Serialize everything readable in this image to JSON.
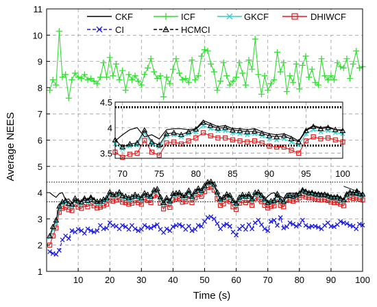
{
  "chart_data": {
    "type": "line",
    "title": "",
    "xlabel": "Time (s)",
    "ylabel": "Average NEES",
    "xlim": [
      0,
      100
    ],
    "ylim": [
      1,
      11
    ],
    "xticks": [
      10,
      20,
      30,
      40,
      50,
      60,
      70,
      80,
      90,
      100
    ],
    "yticks": [
      1,
      2,
      3,
      4,
      5,
      6,
      7,
      8,
      9,
      10,
      11
    ],
    "grid": true,
    "legend_position": "top",
    "confidence_bounds": [
      3.65,
      4.4
    ],
    "colors": {
      "CKF": "#000000",
      "ICF": "#33dd33",
      "GKCF": "#33cccc",
      "DHIWCF": "#e21a1a",
      "CI": "#1a1ae6",
      "HCMCI": "#000000"
    },
    "series": [
      {
        "name": "CKF",
        "marker": "none",
        "x": [
          1,
          2,
          3,
          4,
          5,
          6,
          7,
          8,
          9,
          10,
          11,
          12,
          13,
          14,
          15,
          16,
          17,
          18,
          19,
          20,
          21,
          22,
          23,
          24,
          25,
          26,
          27,
          28,
          29,
          30,
          31,
          32,
          33,
          34,
          35,
          36,
          37,
          38,
          39,
          40,
          41,
          42,
          43,
          44,
          45,
          46,
          47,
          48,
          49,
          50,
          51,
          52,
          53,
          54,
          55,
          56,
          57,
          58,
          59,
          60,
          61,
          62,
          63,
          64,
          65,
          66,
          67,
          68,
          69,
          70,
          71,
          72,
          73,
          74,
          75,
          76,
          77,
          78,
          79,
          80,
          81,
          82,
          83,
          84,
          85,
          86,
          87,
          88,
          89,
          90,
          91,
          92,
          93,
          94,
          95,
          96,
          97,
          98,
          99,
          100
        ],
        "values": [
          4.0,
          3.9,
          3.82,
          3.96,
          4.0,
          3.72,
          3.76,
          3.6,
          3.68,
          3.7,
          3.66,
          3.8,
          3.74,
          3.86,
          3.76,
          3.64,
          3.68,
          3.72,
          3.78,
          4.0,
          3.9,
          3.94,
          4.02,
          3.88,
          3.86,
          3.8,
          3.84,
          3.92,
          3.86,
          3.8,
          3.96,
          3.92,
          3.86,
          4.1,
          4.14,
          3.82,
          3.6,
          3.78,
          3.66,
          3.94,
          3.96,
          3.98,
          3.86,
          3.88,
          4.06,
          3.84,
          4.02,
          4.14,
          4.06,
          4.24,
          4.38,
          4.4,
          4.3,
          4.0,
          3.74,
          3.8,
          3.92,
          3.88,
          3.68,
          3.58,
          3.8,
          3.9,
          3.84,
          3.92,
          3.74,
          3.98,
          4.0,
          3.88,
          3.74,
          3.86,
          3.96,
          4.0,
          3.82,
          3.86,
          3.78,
          3.96,
          3.98,
          3.98,
          3.96,
          3.98,
          4.14,
          4.08,
          4.02,
          4.04,
          3.98,
          3.98,
          3.96,
          3.98,
          3.92,
          3.88,
          3.86,
          3.88,
          3.82,
          3.74,
          3.96,
          4.04,
          4.0,
          4.02,
          3.96,
          3.96
        ]
      },
      {
        "name": "ICF",
        "marker": "plus",
        "x": [
          1,
          2,
          3,
          4,
          5,
          6,
          7,
          8,
          9,
          10,
          11,
          12,
          13,
          14,
          15,
          16,
          17,
          18,
          19,
          20,
          21,
          22,
          23,
          24,
          25,
          26,
          27,
          28,
          29,
          30,
          31,
          32,
          33,
          34,
          35,
          36,
          37,
          38,
          39,
          40,
          41,
          42,
          43,
          44,
          45,
          46,
          47,
          48,
          49,
          50,
          51,
          52,
          53,
          54,
          55,
          56,
          57,
          58,
          59,
          60,
          61,
          62,
          63,
          64,
          65,
          66,
          67,
          68,
          69,
          70,
          71,
          72,
          73,
          74,
          75,
          76,
          77,
          78,
          79,
          80,
          81,
          82,
          83,
          84,
          85,
          86,
          87,
          88,
          89,
          90,
          91,
          92,
          93,
          94,
          95,
          96,
          97,
          98,
          99,
          100
        ],
        "values": [
          7.9,
          8.3,
          8.1,
          10.15,
          8.4,
          8.5,
          7.6,
          8.3,
          8.55,
          8.4,
          8.35,
          8.5,
          8.3,
          8.35,
          8.25,
          8.15,
          8.4,
          8.95,
          8.4,
          9.15,
          8.45,
          8.9,
          8.3,
          8.65,
          7.9,
          8.5,
          8.3,
          8.45,
          8.25,
          8.1,
          8.5,
          8.75,
          9.1,
          8.6,
          8.35,
          8.45,
          7.65,
          8.4,
          8.15,
          8.7,
          9.1,
          8.55,
          8.3,
          8.35,
          8.2,
          9.05,
          8.3,
          8.45,
          9.2,
          9.45,
          9.4,
          8.9,
          8.6,
          7.9,
          8.25,
          8.95,
          8.45,
          8.1,
          8.25,
          8.4,
          8.95,
          8.55,
          8.1,
          9.05,
          8.7,
          9.85,
          8.5,
          7.75,
          8.45,
          7.9,
          8.15,
          8.3,
          9.35,
          8.6,
          8.95,
          7.85,
          8.45,
          8.2,
          8.9,
          7.95,
          8.85,
          9.2,
          8.4,
          8.7,
          8.2,
          8.1,
          9.1,
          8.45,
          8.3,
          8.45,
          8.3,
          8.95,
          8.8,
          8.75,
          9.1,
          8.35,
          8.9,
          9.4,
          8.75,
          8.8
        ]
      },
      {
        "name": "GKCF",
        "marker": "x",
        "x": [
          1,
          2,
          3,
          4,
          5,
          6,
          7,
          8,
          9,
          10,
          11,
          12,
          13,
          14,
          15,
          16,
          17,
          18,
          19,
          20,
          21,
          22,
          23,
          24,
          25,
          26,
          27,
          28,
          29,
          30,
          31,
          32,
          33,
          34,
          35,
          36,
          37,
          38,
          39,
          40,
          41,
          42,
          43,
          44,
          45,
          46,
          47,
          48,
          49,
          50,
          51,
          52,
          53,
          54,
          55,
          56,
          57,
          58,
          59,
          60,
          61,
          62,
          63,
          64,
          65,
          66,
          67,
          68,
          69,
          70,
          71,
          72,
          73,
          74,
          75,
          76,
          77,
          78,
          79,
          80,
          81,
          82,
          83,
          84,
          85,
          86,
          87,
          88,
          89,
          90,
          91,
          92,
          93,
          94,
          95,
          96,
          97,
          98,
          99,
          100
        ],
        "values": [
          2.3,
          2.6,
          2.85,
          3.4,
          3.58,
          3.62,
          3.5,
          3.48,
          3.7,
          3.6,
          3.56,
          3.7,
          3.62,
          3.74,
          3.64,
          3.58,
          3.6,
          3.66,
          3.72,
          3.95,
          3.84,
          3.86,
          3.94,
          3.8,
          3.78,
          3.72,
          3.76,
          3.84,
          3.78,
          3.72,
          3.9,
          3.84,
          3.78,
          4.02,
          4.06,
          3.76,
          3.55,
          3.72,
          3.6,
          3.88,
          3.9,
          3.92,
          3.8,
          3.82,
          4.0,
          3.78,
          3.96,
          4.08,
          4.0,
          4.18,
          4.32,
          4.34,
          4.24,
          3.94,
          3.68,
          3.74,
          3.86,
          3.82,
          3.62,
          3.52,
          3.74,
          3.84,
          3.78,
          3.86,
          3.68,
          3.92,
          3.94,
          3.82,
          3.68,
          3.58,
          3.64,
          3.66,
          3.9,
          3.68,
          3.62,
          3.84,
          3.86,
          3.82,
          3.88,
          3.92,
          4.04,
          3.98,
          3.94,
          3.94,
          3.9,
          3.88,
          3.86,
          3.88,
          3.84,
          3.78,
          3.76,
          3.78,
          3.72,
          3.66,
          3.88,
          3.96,
          3.92,
          3.94,
          3.9,
          3.88
        ]
      },
      {
        "name": "DHIWCF",
        "marker": "square",
        "x": [
          1,
          2,
          3,
          4,
          5,
          6,
          7,
          8,
          9,
          10,
          11,
          12,
          13,
          14,
          15,
          16,
          17,
          18,
          19,
          20,
          21,
          22,
          23,
          24,
          25,
          26,
          27,
          28,
          29,
          30,
          31,
          32,
          33,
          34,
          35,
          36,
          37,
          38,
          39,
          40,
          41,
          42,
          43,
          44,
          45,
          46,
          47,
          48,
          49,
          50,
          51,
          52,
          53,
          54,
          55,
          56,
          57,
          58,
          59,
          60,
          61,
          62,
          63,
          64,
          65,
          66,
          67,
          68,
          69,
          70,
          71,
          72,
          73,
          74,
          75,
          76,
          77,
          78,
          79,
          80,
          81,
          82,
          83,
          84,
          85,
          86,
          87,
          88,
          89,
          90,
          91,
          92,
          93,
          94,
          95,
          96,
          97,
          98,
          99,
          100
        ],
        "values": [
          2.0,
          2.35,
          2.65,
          3.25,
          3.4,
          3.45,
          3.35,
          3.32,
          3.55,
          3.45,
          3.4,
          3.55,
          3.46,
          3.6,
          3.5,
          3.42,
          3.45,
          3.5,
          3.56,
          3.8,
          3.68,
          3.72,
          3.8,
          3.64,
          3.62,
          3.56,
          3.6,
          3.7,
          3.62,
          3.56,
          3.74,
          3.7,
          3.62,
          3.88,
          3.92,
          3.6,
          3.38,
          3.56,
          3.44,
          3.72,
          3.76,
          3.78,
          3.64,
          3.66,
          3.86,
          3.62,
          3.8,
          3.94,
          3.86,
          4.04,
          4.2,
          4.22,
          4.1,
          3.78,
          3.52,
          3.58,
          3.72,
          3.66,
          3.46,
          3.36,
          3.6,
          3.7,
          3.62,
          3.7,
          3.52,
          3.78,
          3.8,
          3.66,
          3.52,
          3.42,
          3.48,
          3.5,
          3.75,
          3.52,
          3.46,
          3.7,
          3.72,
          3.68,
          3.74,
          3.8,
          3.9,
          3.84,
          3.8,
          3.8,
          3.76,
          3.74,
          3.72,
          3.74,
          3.7,
          3.64,
          3.62,
          3.62,
          3.56,
          3.5,
          3.74,
          3.82,
          3.78,
          3.8,
          3.76,
          3.72
        ]
      },
      {
        "name": "CI",
        "marker": "x",
        "x": [
          1,
          2,
          3,
          4,
          5,
          6,
          7,
          8,
          9,
          10,
          11,
          12,
          13,
          14,
          15,
          16,
          17,
          18,
          19,
          20,
          21,
          22,
          23,
          24,
          25,
          26,
          27,
          28,
          29,
          30,
          31,
          32,
          33,
          34,
          35,
          36,
          37,
          38,
          39,
          40,
          41,
          42,
          43,
          44,
          45,
          46,
          47,
          48,
          49,
          50,
          51,
          52,
          53,
          54,
          55,
          56,
          57,
          58,
          59,
          60,
          61,
          62,
          63,
          64,
          65,
          66,
          67,
          68,
          69,
          70,
          71,
          72,
          73,
          74,
          75,
          76,
          77,
          78,
          79,
          80,
          81,
          82,
          83,
          84,
          85,
          86,
          87,
          88,
          89,
          90,
          91,
          92,
          93,
          94,
          95,
          96,
          97,
          98,
          99,
          100
        ],
        "values": [
          1.75,
          1.68,
          1.65,
          1.8,
          2.2,
          2.35,
          2.25,
          2.55,
          2.5,
          2.6,
          2.55,
          2.45,
          2.62,
          2.55,
          2.5,
          2.55,
          2.75,
          2.62,
          2.65,
          2.85,
          2.75,
          2.72,
          2.62,
          2.75,
          2.7,
          2.6,
          2.75,
          2.62,
          2.55,
          2.6,
          2.75,
          2.68,
          2.65,
          2.72,
          2.78,
          2.6,
          2.48,
          2.62,
          2.55,
          2.7,
          2.75,
          2.78,
          2.72,
          2.6,
          2.72,
          2.55,
          2.6,
          2.75,
          2.72,
          2.9,
          3.05,
          3.08,
          3.0,
          2.82,
          2.62,
          2.75,
          2.8,
          2.72,
          2.5,
          2.38,
          2.62,
          2.72,
          2.6,
          2.78,
          2.62,
          2.85,
          2.95,
          2.78,
          2.62,
          2.55,
          2.9,
          2.95,
          2.75,
          3.05,
          2.65,
          2.7,
          2.85,
          2.8,
          2.72,
          2.78,
          2.95,
          2.75,
          2.68,
          2.72,
          2.72,
          2.68,
          2.62,
          2.75,
          2.85,
          2.72,
          2.7,
          2.78,
          2.9,
          2.85,
          2.82,
          2.75,
          2.72,
          2.62,
          2.8,
          2.76
        ]
      },
      {
        "name": "HCMCI",
        "marker": "triangle",
        "x": [
          1,
          2,
          3,
          4,
          5,
          6,
          7,
          8,
          9,
          10,
          11,
          12,
          13,
          14,
          15,
          16,
          17,
          18,
          19,
          20,
          21,
          22,
          23,
          24,
          25,
          26,
          27,
          28,
          29,
          30,
          31,
          32,
          33,
          34,
          35,
          36,
          37,
          38,
          39,
          40,
          41,
          42,
          43,
          44,
          45,
          46,
          47,
          48,
          49,
          50,
          51,
          52,
          53,
          54,
          55,
          56,
          57,
          58,
          59,
          60,
          61,
          62,
          63,
          64,
          65,
          66,
          67,
          68,
          69,
          70,
          71,
          72,
          73,
          74,
          75,
          76,
          77,
          78,
          79,
          80,
          81,
          82,
          83,
          84,
          85,
          86,
          87,
          88,
          89,
          90,
          91,
          92,
          93,
          94,
          95,
          96,
          97,
          98,
          99,
          100
        ],
        "values": [
          2.35,
          2.7,
          2.95,
          3.48,
          3.65,
          3.7,
          3.58,
          3.56,
          3.78,
          3.68,
          3.64,
          3.78,
          3.7,
          3.82,
          3.72,
          3.66,
          3.68,
          3.74,
          3.8,
          4.02,
          3.92,
          3.94,
          4.02,
          3.88,
          3.86,
          3.8,
          3.84,
          3.92,
          3.86,
          3.8,
          3.98,
          3.92,
          3.86,
          4.1,
          4.14,
          3.84,
          3.62,
          3.8,
          3.68,
          3.96,
          3.98,
          4.0,
          3.88,
          3.9,
          4.08,
          3.86,
          4.04,
          4.16,
          4.08,
          4.26,
          4.4,
          4.42,
          4.32,
          4.02,
          3.76,
          3.82,
          3.94,
          3.9,
          3.7,
          3.6,
          3.82,
          3.92,
          3.86,
          3.94,
          3.76,
          4.0,
          4.02,
          3.9,
          3.76,
          3.62,
          3.68,
          3.7,
          3.95,
          3.72,
          3.66,
          3.88,
          3.9,
          3.86,
          3.92,
          3.97,
          4.1,
          4.04,
          3.99,
          4.0,
          3.95,
          3.94,
          3.92,
          3.93,
          3.89,
          3.84,
          3.82,
          3.84,
          3.78,
          3.72,
          3.94,
          4.02,
          3.98,
          4.0,
          3.96,
          3.94
        ]
      }
    ],
    "inset": {
      "xlim": [
        69,
        100
      ],
      "ylim": [
        3.4,
        4.5
      ],
      "xticks": [
        70,
        75,
        80,
        85,
        90,
        95,
        100
      ],
      "yticks": [
        3.5,
        4,
        4.5
      ],
      "confidence_bounds": [
        3.65,
        4.4
      ]
    }
  }
}
